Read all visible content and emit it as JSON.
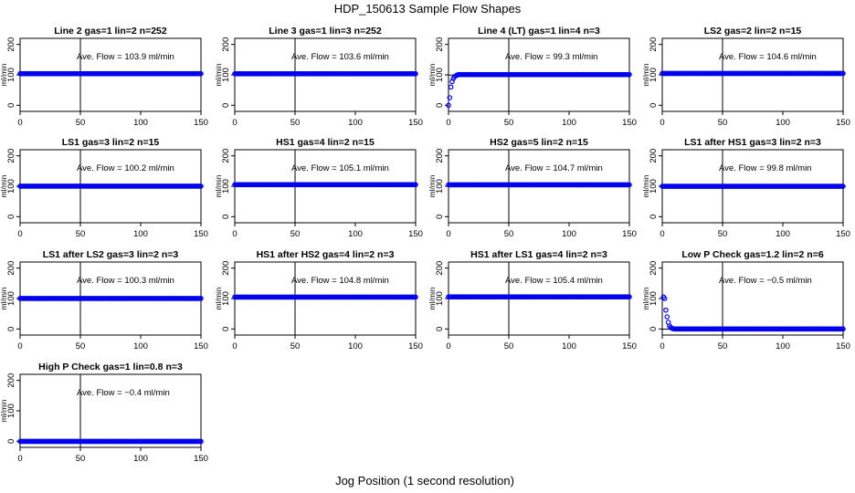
{
  "figure": {
    "title": "HDP_150613  Sample Flow Shapes",
    "xlabel": "Jog Position (1 second resolution)"
  },
  "chart_data": [
    {
      "type": "scatter",
      "title": "Line 2 gas=1 lin=2 n=252",
      "ylabel": "ml/min",
      "annotation": "Ave. Flow =  103.9  ml/min",
      "mean": 103.9,
      "shape": "flat",
      "xlim": [
        0,
        150
      ],
      "ylim": [
        -20,
        220
      ],
      "x_ticks": [
        0,
        50,
        100,
        150
      ],
      "y_ticks": [
        0,
        100,
        200
      ],
      "vline_x": 50,
      "point_color": "#0000ee"
    },
    {
      "type": "scatter",
      "title": "Line 3 gas=1 lin=3 n=252",
      "ylabel": "ml/min",
      "annotation": "Ave. Flow =  103.6  ml/min",
      "mean": 103.6,
      "shape": "flat",
      "xlim": [
        0,
        150
      ],
      "ylim": [
        -20,
        220
      ],
      "x_ticks": [
        0,
        50,
        100,
        150
      ],
      "y_ticks": [
        0,
        100,
        200
      ],
      "vline_x": 50,
      "point_color": "#0000ee"
    },
    {
      "type": "scatter",
      "title": "Line 4 (LT) gas=1 lin=4 n=3",
      "ylabel": "ml/min",
      "annotation": "Ave. Flow =  99.3  ml/min",
      "mean": 99.3,
      "shape": "rise",
      "xlim": [
        0,
        150
      ],
      "ylim": [
        -20,
        220
      ],
      "x_ticks": [
        0,
        50,
        100,
        150
      ],
      "y_ticks": [
        0,
        100,
        200
      ],
      "vline_x": 50,
      "point_color": "#0000ee"
    },
    {
      "type": "scatter",
      "title": "LS2 gas=2 lin=2 n=15",
      "ylabel": "ml/min",
      "annotation": "Ave. Flow =  104.6  ml/min",
      "mean": 104.6,
      "shape": "flat",
      "xlim": [
        0,
        150
      ],
      "ylim": [
        -20,
        220
      ],
      "x_ticks": [
        0,
        50,
        100,
        150
      ],
      "y_ticks": [
        0,
        100,
        200
      ],
      "vline_x": 50,
      "point_color": "#0000ee"
    },
    {
      "type": "scatter",
      "title": "LS1 gas=3 lin=2 n=15",
      "ylabel": "ml/min",
      "annotation": "Ave. Flow =  100.2  ml/min",
      "mean": 100.2,
      "shape": "flat",
      "xlim": [
        0,
        150
      ],
      "ylim": [
        -20,
        220
      ],
      "x_ticks": [
        0,
        50,
        100,
        150
      ],
      "y_ticks": [
        0,
        100,
        200
      ],
      "vline_x": 50,
      "point_color": "#0000ee"
    },
    {
      "type": "scatter",
      "title": "HS1 gas=4 lin=2 n=15",
      "ylabel": "ml/min",
      "annotation": "Ave. Flow =  105.1  ml/min",
      "mean": 105.1,
      "shape": "flat",
      "xlim": [
        0,
        150
      ],
      "ylim": [
        -20,
        220
      ],
      "x_ticks": [
        0,
        50,
        100,
        150
      ],
      "y_ticks": [
        0,
        100,
        200
      ],
      "vline_x": 50,
      "point_color": "#0000ee"
    },
    {
      "type": "scatter",
      "title": "HS2 gas=5 lin=2 n=15",
      "ylabel": "ml/min",
      "annotation": "Ave. Flow =  104.7  ml/min",
      "mean": 104.7,
      "shape": "flat",
      "xlim": [
        0,
        150
      ],
      "ylim": [
        -20,
        220
      ],
      "x_ticks": [
        0,
        50,
        100,
        150
      ],
      "y_ticks": [
        0,
        100,
        200
      ],
      "vline_x": 50,
      "point_color": "#0000ee"
    },
    {
      "type": "scatter",
      "title": "LS1 after HS1 gas=3 lin=2 n=3",
      "ylabel": "ml/min",
      "annotation": "Ave. Flow =  99.8  ml/min",
      "mean": 99.8,
      "shape": "flat",
      "xlim": [
        0,
        150
      ],
      "ylim": [
        -20,
        220
      ],
      "x_ticks": [
        0,
        50,
        100,
        150
      ],
      "y_ticks": [
        0,
        100,
        200
      ],
      "vline_x": 50,
      "point_color": "#0000ee"
    },
    {
      "type": "scatter",
      "title": "LS1 after LS2 gas=3 lin=2 n=3",
      "ylabel": "ml/min",
      "annotation": "Ave. Flow =  100.3  ml/min",
      "mean": 100.3,
      "shape": "flat",
      "xlim": [
        0,
        150
      ],
      "ylim": [
        -20,
        220
      ],
      "x_ticks": [
        0,
        50,
        100,
        150
      ],
      "y_ticks": [
        0,
        100,
        200
      ],
      "vline_x": 50,
      "point_color": "#0000ee"
    },
    {
      "type": "scatter",
      "title": "HS1 after HS2 gas=4 lin=2 n=3",
      "ylabel": "ml/min",
      "annotation": "Ave. Flow =  104.8  ml/min",
      "mean": 104.8,
      "shape": "flat",
      "xlim": [
        0,
        150
      ],
      "ylim": [
        -20,
        220
      ],
      "x_ticks": [
        0,
        50,
        100,
        150
      ],
      "y_ticks": [
        0,
        100,
        200
      ],
      "vline_x": 50,
      "point_color": "#0000ee"
    },
    {
      "type": "scatter",
      "title": "HS1 after LS1 gas=4 lin=2 n=3",
      "ylabel": "ml/min",
      "annotation": "Ave. Flow =  105.4  ml/min",
      "mean": 105.4,
      "shape": "flat",
      "xlim": [
        0,
        150
      ],
      "ylim": [
        -20,
        220
      ],
      "x_ticks": [
        0,
        50,
        100,
        150
      ],
      "y_ticks": [
        0,
        100,
        200
      ],
      "vline_x": 50,
      "point_color": "#0000ee"
    },
    {
      "type": "scatter",
      "title": "Low P Check gas=1.2 lin=2 n=6",
      "ylabel": "ml/min",
      "annotation": "Ave. Flow =  −0.5  ml/min",
      "mean": -0.5,
      "shape": "decay",
      "xlim": [
        0,
        150
      ],
      "ylim": [
        -20,
        220
      ],
      "x_ticks": [
        0,
        50,
        100,
        150
      ],
      "y_ticks": [
        0,
        100,
        200
      ],
      "vline_x": 50,
      "point_color": "#0000ee"
    },
    {
      "type": "scatter",
      "title": "High P Check gas=1 lin=0.8 n=3",
      "ylabel": "ml/min",
      "annotation": "Ave. Flow =  −0.4  ml/min",
      "mean": -0.4,
      "shape": "zero",
      "xlim": [
        0,
        150
      ],
      "ylim": [
        -20,
        220
      ],
      "x_ticks": [
        0,
        50,
        100,
        150
      ],
      "y_ticks": [
        0,
        100,
        200
      ],
      "vline_x": 50,
      "point_color": "#0000ee"
    }
  ]
}
